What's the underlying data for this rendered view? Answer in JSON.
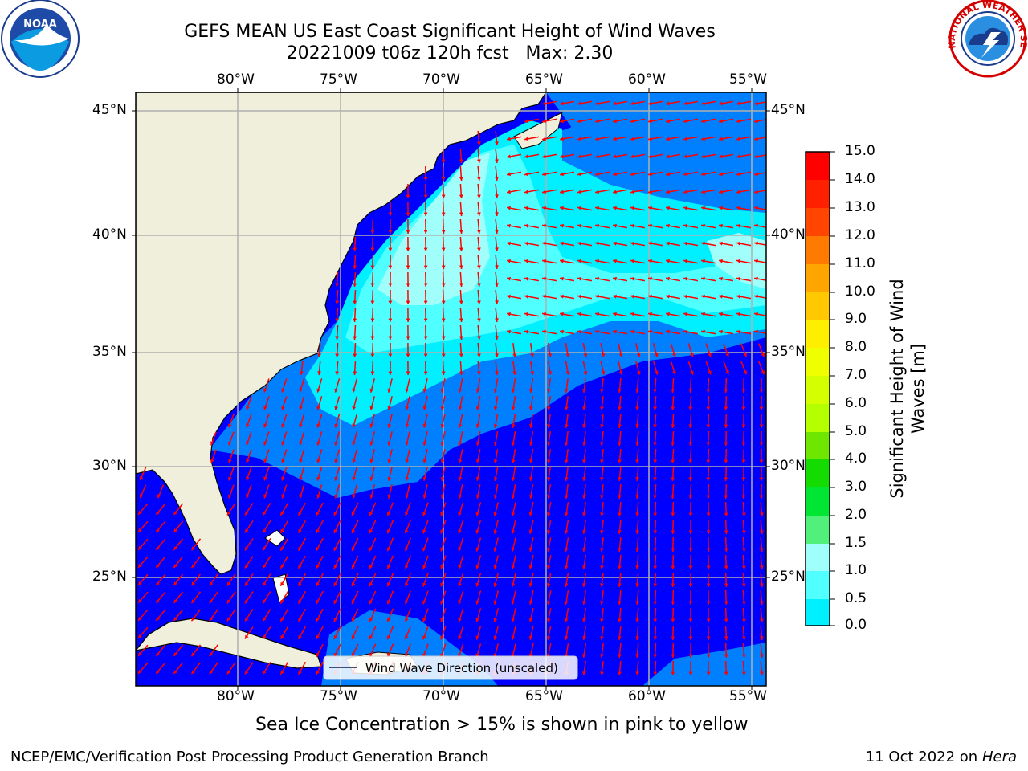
{
  "title": {
    "line1": "GEFS MEAN US East Coast Significant Height of Wind Waves",
    "line2": "20221009 t06z 120h fcst   Max: 2.30"
  },
  "axes": {
    "lon_ticks": [
      "80°W",
      "75°W",
      "70°W",
      "65°W",
      "60°W",
      "55°W"
    ],
    "lat_ticks": [
      "45°N",
      "40°N",
      "35°N",
      "30°N",
      "25°N"
    ]
  },
  "colorbar": {
    "label": "Significant Height of Wind Waves [m]",
    "label_line1": "Significant Height of Wind",
    "label_line2": "Waves [m]",
    "ticks": [
      "15.0",
      "14.0",
      "13.0",
      "12.0",
      "11.0",
      "10.0",
      "9.0",
      "8.0",
      "7.0",
      "6.0",
      "5.0",
      "4.0",
      "3.0",
      "2.0",
      "1.5",
      "1.0",
      "0.5",
      "0.0"
    ],
    "colors": [
      "#ff0000",
      "#ff2000",
      "#ff4500",
      "#ff7a00",
      "#ffa500",
      "#ffc800",
      "#ffee00",
      "#f0ff00",
      "#d4ff00",
      "#b4ff00",
      "#6ee600",
      "#14dc00",
      "#00e632",
      "#50f07a",
      "#a0fffa",
      "#50ffff",
      "#00f0ff",
      "#0080ff",
      "#0000ff"
    ]
  },
  "legend": {
    "label": "Wind Wave Direction (unscaled)"
  },
  "note": "Sea Ice Concentration > 15% is shown in pink to yellow",
  "footer": {
    "left": "NCEP/EMC/Verification Post Processing Product Generation Branch",
    "right_date": "11 Oct 2022 on ",
    "right_host": "Hera"
  },
  "logos": {
    "left": "NOAA",
    "right": "NATIONAL WEATHER SERVICE"
  },
  "map": {
    "colors": {
      "land": "#efefdc",
      "wave_0_05": "#0000ff",
      "wave_05_10": "#0080ff",
      "wave_10_15": "#00f0ff",
      "wave_15_20": "#50ffff",
      "wave_20_30": "#a0fffa",
      "arrow": "#ff0000",
      "grid": "#b0b0b0"
    }
  }
}
